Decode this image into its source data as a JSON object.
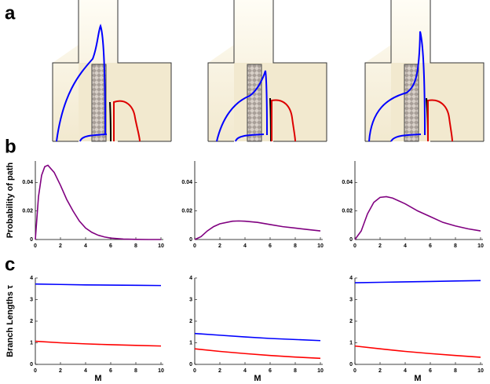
{
  "panel_labels": [
    "a",
    "b",
    "c"
  ],
  "chart_data": [
    {
      "type": "line",
      "ylabel": "Probability of path",
      "x": [
        0,
        0.25,
        0.5,
        0.75,
        1,
        1.5,
        2,
        2.5,
        3,
        3.5,
        4,
        4.5,
        5,
        5.5,
        6,
        7,
        8,
        9,
        10
      ],
      "series": [
        {
          "color": "#800080",
          "values": [
            0,
            0.03,
            0.045,
            0.051,
            0.052,
            0.047,
            0.038,
            0.028,
            0.02,
            0.013,
            0.008,
            0.005,
            0.003,
            0.0018,
            0.001,
            0.0003,
            0.0001,
            0,
            0
          ]
        }
      ],
      "xlim": [
        0,
        10
      ],
      "ylim": [
        0,
        0.055
      ],
      "xticks": [
        0,
        2,
        4,
        6,
        8,
        10
      ],
      "yticks": [
        0,
        0.02,
        0.04
      ]
    },
    {
      "type": "line",
      "x": [
        0,
        0.5,
        1,
        1.5,
        2,
        3,
        3.5,
        4,
        5,
        6,
        7,
        8,
        9,
        10
      ],
      "series": [
        {
          "color": "#800080",
          "values": [
            0,
            0.002,
            0.006,
            0.009,
            0.011,
            0.0128,
            0.013,
            0.0128,
            0.012,
            0.0105,
            0.009,
            0.008,
            0.007,
            0.006
          ]
        }
      ],
      "xlim": [
        0,
        10
      ],
      "ylim": [
        0,
        0.055
      ],
      "xticks": [
        0,
        2,
        4,
        6,
        8,
        10
      ],
      "yticks": [
        0,
        0.02,
        0.04
      ]
    },
    {
      "type": "line",
      "x": [
        0,
        0.5,
        1,
        1.5,
        2,
        2.5,
        3,
        4,
        5,
        6,
        7,
        8,
        9,
        10
      ],
      "series": [
        {
          "color": "#800080",
          "values": [
            0,
            0.006,
            0.018,
            0.026,
            0.0295,
            0.03,
            0.029,
            0.025,
            0.02,
            0.016,
            0.012,
            0.0095,
            0.0075,
            0.006
          ]
        }
      ],
      "xlim": [
        0,
        10
      ],
      "ylim": [
        0,
        0.055
      ],
      "xticks": [
        0,
        2,
        4,
        6,
        8,
        10
      ],
      "yticks": [
        0,
        0.02,
        0.04
      ]
    },
    {
      "type": "line",
      "ylabel": "Branch Lengths τ",
      "xlabel": "M",
      "x": [
        0,
        2,
        4,
        6,
        8,
        10
      ],
      "series": [
        {
          "color": "#0000ff",
          "values": [
            3.72,
            3.7,
            3.68,
            3.67,
            3.66,
            3.65
          ]
        },
        {
          "color": "#ff0000",
          "values": [
            1.07,
            1.0,
            0.95,
            0.91,
            0.88,
            0.85
          ]
        }
      ],
      "xlim": [
        0,
        10
      ],
      "ylim": [
        0,
        4
      ],
      "xticks": [
        0,
        2,
        4,
        6,
        8,
        10
      ],
      "yticks": [
        0,
        1,
        2,
        3,
        4
      ]
    },
    {
      "type": "line",
      "xlabel": "M",
      "x": [
        0,
        2,
        4,
        6,
        8,
        10
      ],
      "series": [
        {
          "color": "#0000ff",
          "values": [
            1.43,
            1.35,
            1.27,
            1.2,
            1.15,
            1.1
          ]
        },
        {
          "color": "#ff0000",
          "values": [
            0.72,
            0.6,
            0.5,
            0.41,
            0.34,
            0.28
          ]
        }
      ],
      "xlim": [
        0,
        10
      ],
      "ylim": [
        0,
        4
      ],
      "xticks": [
        0,
        2,
        4,
        6,
        8,
        10
      ],
      "yticks": [
        0,
        1,
        2,
        3,
        4
      ]
    },
    {
      "type": "line",
      "xlabel": "M",
      "x": [
        0,
        2,
        4,
        6,
        8,
        10
      ],
      "series": [
        {
          "color": "#0000ff",
          "values": [
            3.78,
            3.8,
            3.82,
            3.84,
            3.86,
            3.88
          ]
        },
        {
          "color": "#ff0000",
          "values": [
            0.85,
            0.72,
            0.6,
            0.5,
            0.41,
            0.33
          ]
        }
      ],
      "xlim": [
        0,
        10
      ],
      "ylim": [
        0,
        4
      ],
      "xticks": [
        0,
        2,
        4,
        6,
        8,
        10
      ],
      "yticks": [
        0,
        1,
        2,
        3,
        4
      ]
    }
  ]
}
